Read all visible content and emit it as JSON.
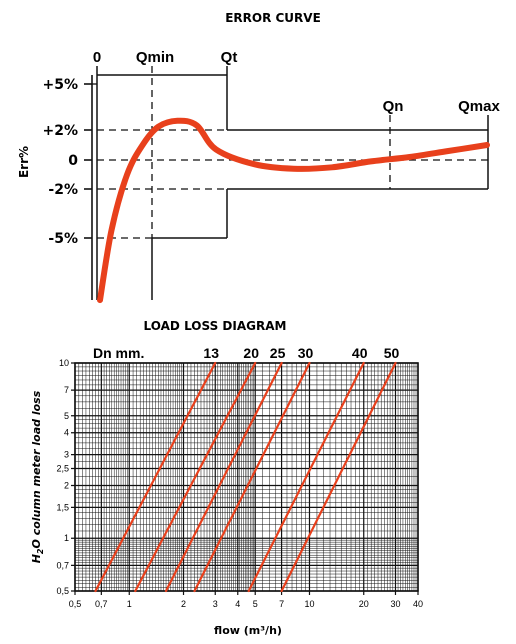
{
  "chart_data": [
    {
      "type": "line",
      "title": "ERROR CURVE",
      "ylabel": "Err%",
      "xlabel": "",
      "x_markers": [
        "0",
        "Qmin",
        "Qt",
        "Qn",
        "Qmax"
      ],
      "y_ticks": [
        "+5%",
        "+2%",
        "0",
        "-2%",
        "-5%"
      ],
      "y_tick_values": [
        5,
        2,
        0,
        -2,
        -5
      ],
      "ylim": [
        -9,
        8
      ],
      "grid": false,
      "curve_color": "#e8401c",
      "series": [
        {
          "x": [
            0.0,
            0.03,
            0.07,
            0.11,
            0.15,
            0.2,
            0.25,
            0.3,
            0.4,
            0.5,
            0.6,
            0.7,
            0.8,
            0.9,
            1.0
          ],
          "y": [
            -8.8,
            -4.5,
            -1.0,
            1.0,
            2.2,
            2.6,
            2.3,
            0.7,
            -0.3,
            -0.6,
            -0.5,
            -0.1,
            0.2,
            0.6,
            1.0
          ]
        }
      ]
    },
    {
      "type": "line",
      "title": "LOAD LOSS DIAGRAM",
      "ylabel": "H2O column meter load loss",
      "xlabel": "flow (m³/h)",
      "x_scale": "log",
      "y_scale": "log",
      "xlim": [
        0.5,
        40
      ],
      "ylim": [
        0.5,
        10
      ],
      "grid": true,
      "x_ticks": [
        0.5,
        0.7,
        1,
        2,
        3,
        4,
        5,
        7,
        10,
        20,
        30,
        40
      ],
      "x_tick_labels": [
        "0,5",
        "0,7",
        "1",
        "2",
        "3",
        "4",
        "5",
        "7",
        "10",
        "20",
        "30",
        "40"
      ],
      "y_ticks": [
        0.5,
        0.7,
        1,
        1.5,
        2,
        2.5,
        3,
        4,
        5,
        7,
        10
      ],
      "y_tick_labels": [
        "0,5",
        "0,7",
        "1",
        "1,5",
        "2",
        "2,5",
        "3",
        "4",
        "5",
        "7",
        "10"
      ],
      "dn_label": "Dn mm.",
      "line_color": "#e8401c",
      "series": [
        {
          "name": "13",
          "x": [
            0.65,
            3.0
          ],
          "y": [
            0.5,
            10
          ]
        },
        {
          "name": "20",
          "x": [
            1.08,
            5.0
          ],
          "y": [
            0.5,
            10
          ]
        },
        {
          "name": "25",
          "x": [
            1.6,
            7.0
          ],
          "y": [
            0.5,
            10
          ]
        },
        {
          "name": "30",
          "x": [
            2.3,
            10.0
          ],
          "y": [
            0.5,
            10
          ]
        },
        {
          "name": "40",
          "x": [
            4.6,
            20.0
          ],
          "y": [
            0.5,
            10
          ]
        },
        {
          "name": "50",
          "x": [
            7.0,
            30.0
          ],
          "y": [
            0.5,
            10
          ]
        }
      ]
    }
  ]
}
